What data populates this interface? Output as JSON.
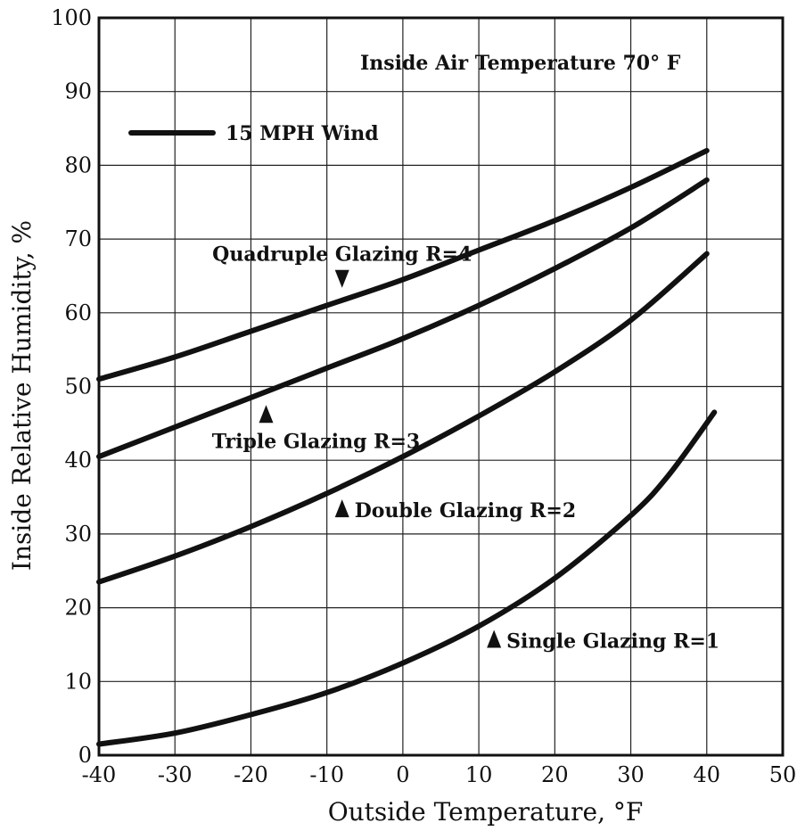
{
  "chart_data": {
    "type": "line",
    "title": "",
    "xlabel": "Outside Temperature, °F",
    "ylabel": "Inside Relative Humidity, %",
    "xlim": [
      -40,
      50
    ],
    "ylim": [
      0,
      100
    ],
    "x_ticks": [
      -40,
      -30,
      -20,
      -10,
      0,
      10,
      20,
      30,
      40,
      50
    ],
    "y_ticks": [
      0,
      10,
      20,
      30,
      40,
      50,
      60,
      70,
      80,
      90,
      100
    ],
    "grid": true,
    "legend": {
      "label": "15 MPH Wind",
      "placement": "top-left"
    },
    "annotations": {
      "inside_air": "Inside Air Temperature 70° F"
    },
    "series": [
      {
        "name": "Quadruple Glazing R=4",
        "marker_x": -8,
        "marker_dir": "down",
        "x": [
          -40,
          -30,
          -20,
          -10,
          0,
          10,
          20,
          30,
          40
        ],
        "values": [
          51,
          54,
          57.5,
          61,
          64.5,
          68.5,
          72.5,
          77,
          82
        ]
      },
      {
        "name": "Triple Glazing R=3",
        "marker_x": -18,
        "marker_dir": "up",
        "x": [
          -40,
          -30,
          -20,
          -10,
          0,
          10,
          20,
          30,
          40
        ],
        "values": [
          40.5,
          44.5,
          48.5,
          52.5,
          56.5,
          61,
          66,
          71.5,
          78
        ]
      },
      {
        "name": "Double Glazing R=2",
        "marker_x": -8,
        "marker_dir": "up",
        "x": [
          -40,
          -30,
          -20,
          -10,
          0,
          10,
          20,
          30,
          40
        ],
        "values": [
          23.5,
          27,
          31,
          35.5,
          40.5,
          46,
          52,
          59,
          68
        ]
      },
      {
        "name": "Single Glazing R=1",
        "marker_x": 12,
        "marker_dir": "up",
        "x": [
          -40,
          -30,
          -20,
          -10,
          0,
          10,
          20,
          30,
          35,
          41
        ],
        "values": [
          1.5,
          3,
          5.5,
          8.5,
          12.5,
          17.5,
          24,
          32.5,
          38,
          46.5
        ]
      }
    ]
  }
}
